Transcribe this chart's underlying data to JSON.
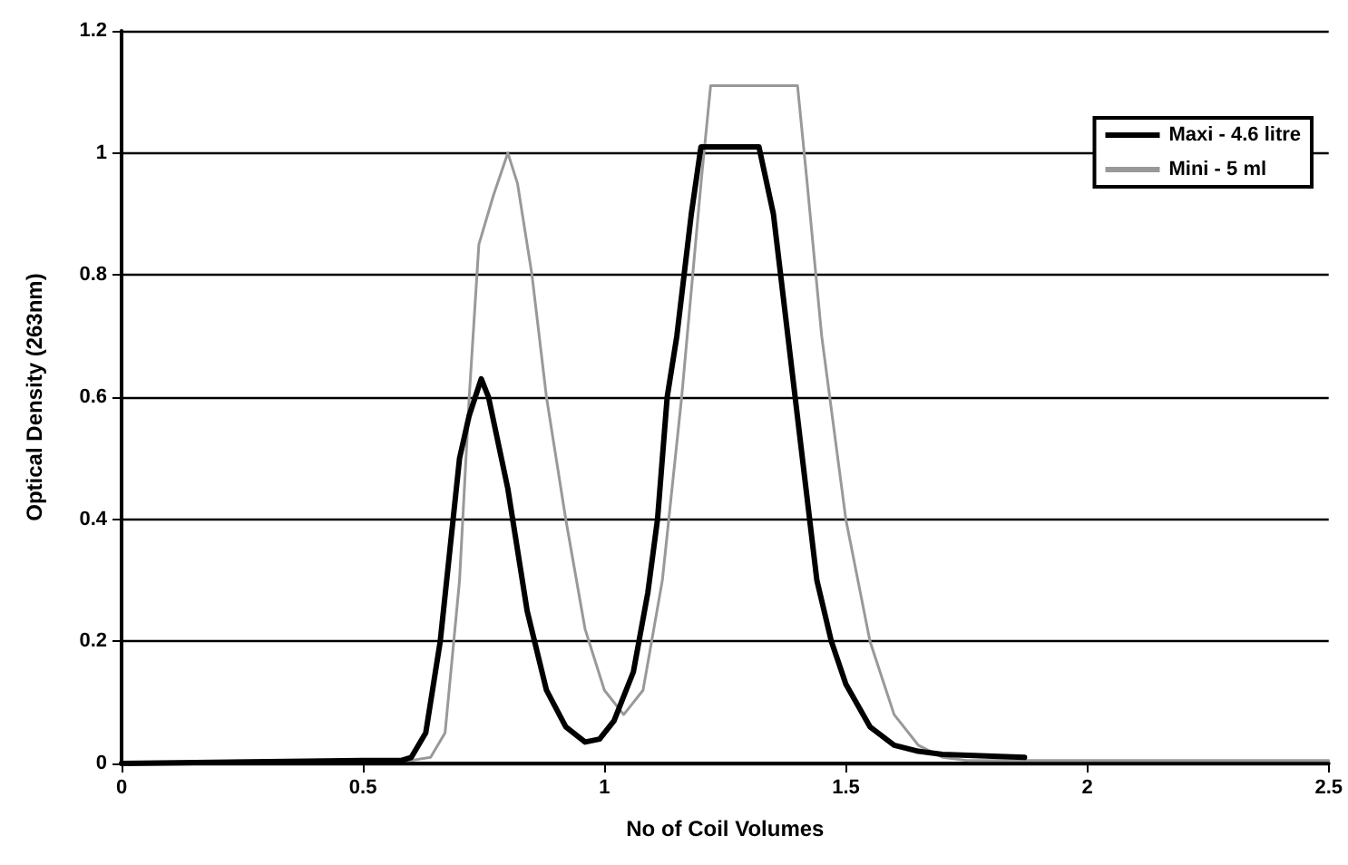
{
  "chart_data": {
    "type": "line",
    "xlabel": "No of Coil Volumes",
    "ylabel": "Optical Density (263nm)",
    "xlim": [
      0,
      2.5
    ],
    "xticks": [
      0,
      0.5,
      1,
      1.5,
      2,
      2.5
    ],
    "ylim": [
      0,
      1.2
    ],
    "yticks": [
      0,
      0.2,
      0.4,
      0.6,
      0.8,
      1,
      1.2
    ],
    "grid": "y",
    "legend": "top right",
    "marker": "none",
    "line_style": "solid",
    "series": [
      {
        "name": "Maxi - 4.6 litre",
        "color": "#000000",
        "x": [
          0,
          0.5,
          0.58,
          0.6,
          0.63,
          0.66,
          0.68,
          0.7,
          0.72,
          0.745,
          0.76,
          0.8,
          0.84,
          0.88,
          0.92,
          0.96,
          0.99,
          1.02,
          1.06,
          1.09,
          1.11,
          1.13,
          1.15,
          1.18,
          1.2,
          1.32,
          1.35,
          1.38,
          1.41,
          1.44,
          1.47,
          1.5,
          1.55,
          1.6,
          1.65,
          1.7,
          1.87
        ],
        "values": [
          0,
          0.005,
          0.005,
          0.01,
          0.05,
          0.2,
          0.35,
          0.5,
          0.57,
          0.63,
          0.6,
          0.45,
          0.25,
          0.12,
          0.06,
          0.035,
          0.04,
          0.07,
          0.15,
          0.28,
          0.4,
          0.6,
          0.7,
          0.9,
          1.01,
          1.01,
          0.9,
          0.7,
          0.5,
          0.3,
          0.2,
          0.13,
          0.06,
          0.03,
          0.02,
          0.015,
          0.01
        ]
      },
      {
        "name": "Mini - 5 ml",
        "color": "#999999",
        "x": [
          0,
          0.6,
          0.64,
          0.67,
          0.7,
          0.72,
          0.74,
          0.77,
          0.8,
          0.82,
          0.85,
          0.88,
          0.92,
          0.96,
          1,
          1.04,
          1.08,
          1.12,
          1.16,
          1.2,
          1.22,
          1.4,
          1.42,
          1.45,
          1.5,
          1.55,
          1.6,
          1.65,
          1.7,
          1.75,
          2.5
        ],
        "values": [
          0,
          0.005,
          0.01,
          0.05,
          0.3,
          0.6,
          0.85,
          0.93,
          1,
          0.95,
          0.8,
          0.6,
          0.4,
          0.22,
          0.12,
          0.08,
          0.12,
          0.3,
          0.6,
          0.95,
          1.11,
          1.11,
          0.95,
          0.7,
          0.4,
          0.2,
          0.08,
          0.03,
          0.01,
          0.005,
          0.005
        ]
      }
    ]
  }
}
